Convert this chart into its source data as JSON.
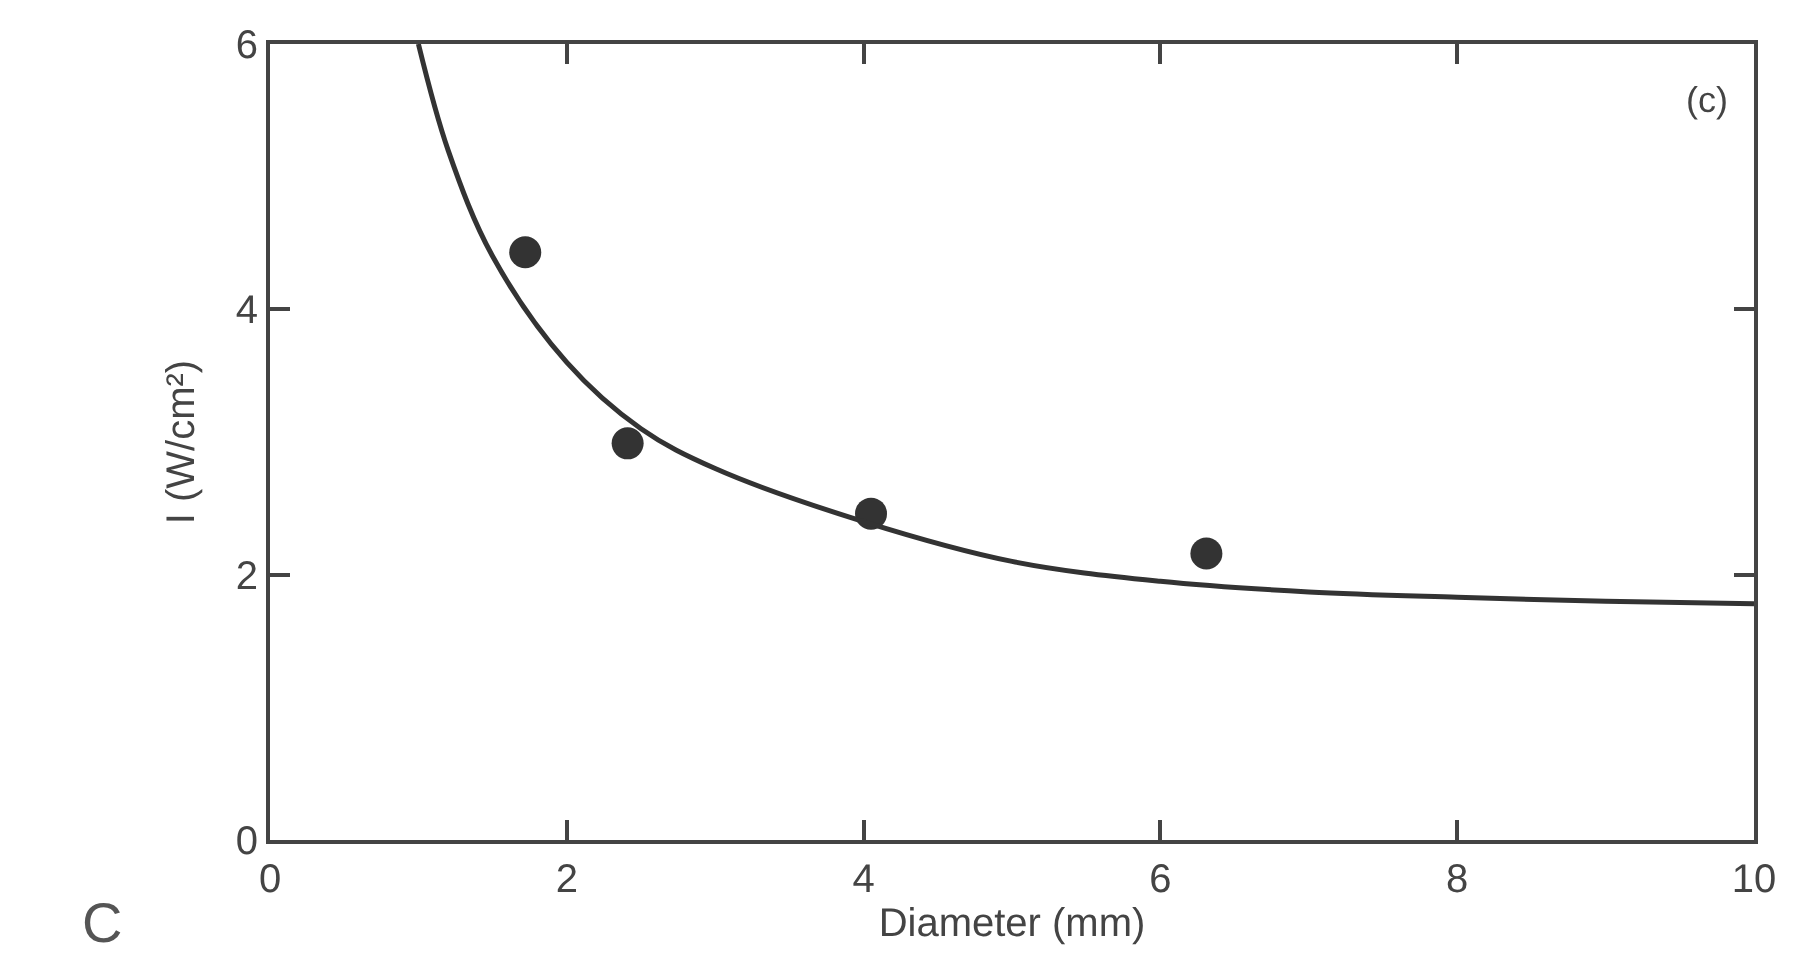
{
  "chart_data": {
    "type": "scatter",
    "xlabel": "Diameter (mm)",
    "ylabel": "I (W/cm²)",
    "xlim": [
      0,
      10
    ],
    "xticks": [
      0,
      2,
      4,
      6,
      8,
      10
    ],
    "ylim": [
      0,
      6
    ],
    "yticks": [
      0,
      2,
      4,
      6
    ],
    "annotations": [
      "(c)",
      "C"
    ],
    "series": [
      {
        "marker": "circle",
        "color": "#333333",
        "x": [
          1.72,
          2.41,
          4.05,
          6.31
        ],
        "values": [
          4.43,
          2.99,
          2.46,
          2.16
        ]
      },
      {
        "type": "line",
        "marker": "none",
        "color": "#333333",
        "line_style": "solid",
        "x": [
          1.0,
          1.2,
          1.5,
          2,
          2.5,
          3,
          4,
          5,
          6,
          7,
          8,
          9,
          10
        ],
        "values": [
          6.0,
          5.2,
          4.4,
          3.6,
          3.1,
          2.8,
          2.4,
          2.1,
          1.95,
          1.87,
          1.83,
          1.8,
          1.78
        ]
      }
    ]
  }
}
